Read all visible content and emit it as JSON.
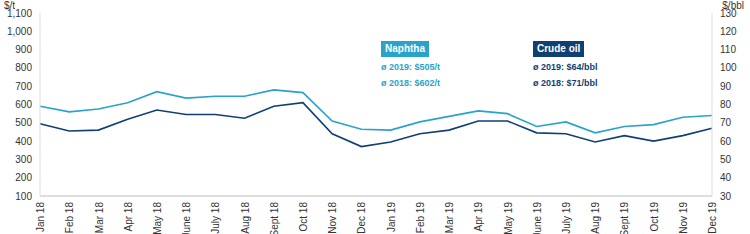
{
  "chart_data": {
    "type": "line",
    "y_label": "$/t",
    "y2_label": "$/bbl",
    "categories": [
      "Jan 18",
      "Feb 18",
      "Mar 18",
      "Apr 18",
      "May 18",
      "June 18",
      "July 18",
      "Aug 18",
      "Sept 18",
      "Oct 18",
      "Nov 18",
      "Dec 18",
      "Jan 19",
      "Feb 19",
      "Mar 19",
      "Apr 19",
      "May 19",
      "June 19",
      "July 19",
      "Aug 19",
      "Sept 19",
      "Oct 19",
      "Nov 19",
      "Dec 19"
    ],
    "series": [
      {
        "name": "Naphtha",
        "color": "#2aa3cc",
        "annotations": [
          "ø 2019: $505/t",
          "ø 2018: $602/t"
        ],
        "values": [
          590,
          560,
          575,
          610,
          670,
          635,
          645,
          645,
          680,
          665,
          510,
          465,
          460,
          505,
          535,
          565,
          550,
          480,
          505,
          445,
          480,
          490,
          530,
          540
        ]
      },
      {
        "name": "Crude oil",
        "color": "#0f3f73",
        "axis": "y2",
        "annotations": [
          "ø 2019: $64/bbl",
          "ø 2018: $71/bbl"
        ],
        "values": [
          69.5,
          65.5,
          66,
          72,
          77,
          74.5,
          74.5,
          72.5,
          79,
          81,
          64,
          57,
          59.5,
          64,
          66,
          71,
          71,
          64.5,
          64,
          59.5,
          63,
          60,
          63,
          67
        ]
      }
    ],
    "ylim": [
      100,
      1100
    ],
    "yticks": [
      100,
      200,
      300,
      400,
      500,
      600,
      700,
      800,
      900,
      {
        "value": 1000,
        "label": "1,000"
      },
      {
        "value": 1100,
        "label": "1,100"
      }
    ],
    "y2lim": [
      30,
      130
    ],
    "y2ticks": [
      30,
      40,
      50,
      60,
      70,
      80,
      90,
      100,
      110,
      120,
      130
    ],
    "grid": false
  }
}
